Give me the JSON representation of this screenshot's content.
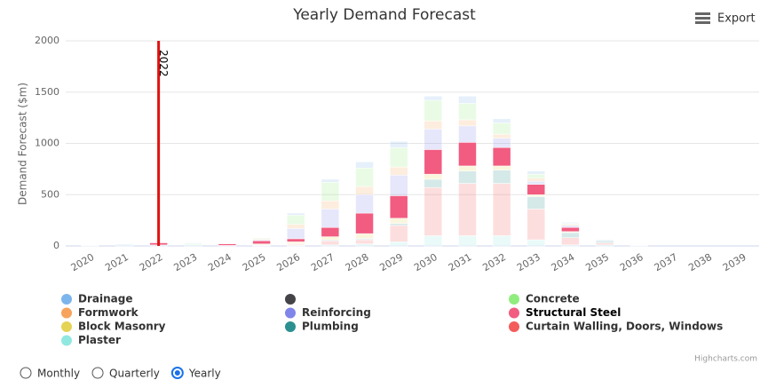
{
  "chart_data": {
    "type": "stacked_bar",
    "title": "Yearly Demand Forecast",
    "export_label": "Export",
    "credits": "Highcharts.com",
    "y_axis_label": "Demand Forecast ($m)",
    "categories": [
      "2020",
      "2021",
      "2022",
      "2023",
      "2024",
      "2025",
      "2026",
      "2027",
      "2028",
      "2029",
      "2030",
      "2031",
      "2032",
      "2033",
      "2034",
      "2035",
      "2036",
      "2037",
      "2038",
      "2039"
    ],
    "ylim": [
      0,
      2000
    ],
    "yticks": [
      0,
      500,
      1000,
      1500,
      2000
    ],
    "grid": true,
    "highlighted": "Structural Steel",
    "plot_line": {
      "label": "2022",
      "color": "#e01010"
    },
    "series": [
      {
        "name": "Drainage",
        "color": "#7cb5ec",
        "values": [
          0,
          10,
          0,
          10,
          0,
          0,
          20,
          30,
          60,
          60,
          40,
          70,
          40,
          30,
          10,
          10,
          5,
          0,
          0,
          0
        ]
      },
      {
        "name": null,
        "color": "#434348",
        "values": [
          0,
          0,
          0,
          0,
          0,
          0,
          0,
          0,
          0,
          0,
          0,
          0,
          0,
          0,
          0,
          0,
          0,
          0,
          0,
          0
        ]
      },
      {
        "name": "Concrete",
        "color": "#90ed7d",
        "values": [
          0,
          0,
          0,
          10,
          0,
          10,
          90,
          180,
          180,
          190,
          200,
          160,
          110,
          40,
          10,
          0,
          0,
          0,
          0,
          0
        ]
      },
      {
        "name": "Formwork",
        "color": "#f7a35c",
        "values": [
          0,
          0,
          0,
          0,
          0,
          10,
          40,
          80,
          80,
          80,
          80,
          60,
          40,
          30,
          10,
          0,
          0,
          0,
          0,
          0
        ]
      },
      {
        "name": "Reinforcing",
        "color": "#8085e9",
        "values": [
          0,
          0,
          0,
          0,
          0,
          10,
          100,
          180,
          180,
          200,
          200,
          160,
          90,
          30,
          20,
          0,
          0,
          0,
          0,
          0
        ]
      },
      {
        "name": "Structural Steel",
        "color": "#f15c80",
        "values": [
          0,
          0,
          20,
          0,
          15,
          30,
          30,
          90,
          200,
          220,
          240,
          230,
          180,
          100,
          40,
          0,
          0,
          0,
          0,
          0
        ]
      },
      {
        "name": "Block Masonry",
        "color": "#e4d354",
        "values": [
          0,
          0,
          0,
          0,
          0,
          10,
          20,
          30,
          50,
          50,
          50,
          50,
          40,
          20,
          10,
          0,
          0,
          0,
          0,
          0
        ]
      },
      {
        "name": "Plumbing",
        "color": "#2b908f",
        "values": [
          0,
          0,
          0,
          0,
          0,
          0,
          5,
          10,
          10,
          20,
          80,
          120,
          130,
          120,
          50,
          20,
          0,
          0,
          0,
          0
        ]
      },
      {
        "name": "Curtain Walling, Doors, Windows",
        "color": "#f45b5b",
        "values": [
          0,
          0,
          0,
          0,
          0,
          5,
          10,
          40,
          40,
          160,
          470,
          510,
          510,
          300,
          70,
          20,
          0,
          0,
          0,
          0
        ]
      },
      {
        "name": "Plaster",
        "color": "#91e8e1",
        "values": [
          5,
          10,
          10,
          10,
          5,
          5,
          5,
          10,
          20,
          40,
          100,
          100,
          100,
          60,
          10,
          10,
          0,
          0,
          0,
          0
        ]
      }
    ],
    "periods": [
      "Monthly",
      "Quarterly",
      "Yearly"
    ],
    "selected_period": "Yearly"
  }
}
